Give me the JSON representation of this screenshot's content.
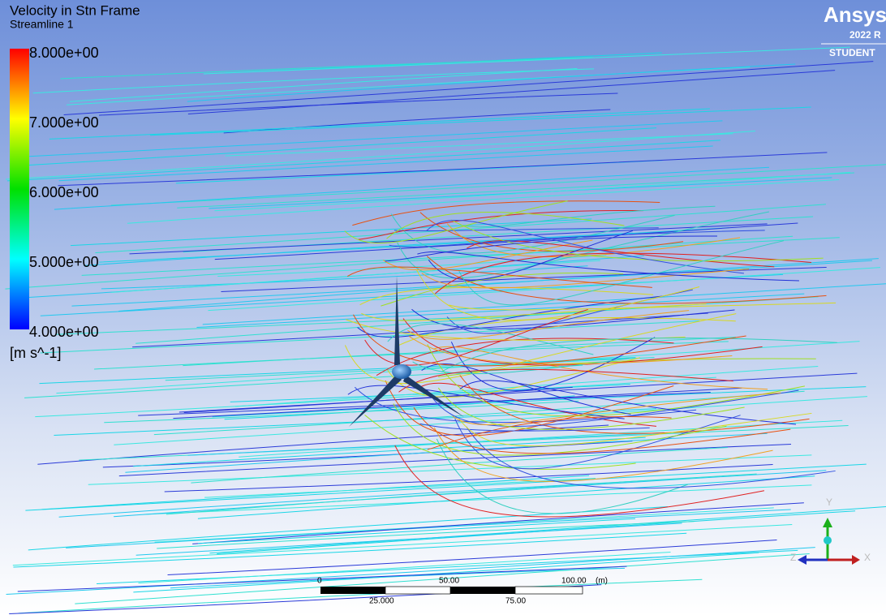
{
  "title": "Velocity in Stn Frame",
  "subtitle": "Streamline 1",
  "legend": {
    "labels": [
      "8.000e+00",
      "7.000e+00",
      "6.000e+00",
      "5.000e+00",
      "4.000e+00"
    ],
    "unit": "[m s^-1]"
  },
  "logo": {
    "brand": "Ansys",
    "version": "2022 R",
    "edition": "STUDENT"
  },
  "scale_bar": {
    "top_labels": [
      "0",
      "50.00",
      "100.00",
      "(m)"
    ],
    "bottom_labels": [
      "25.000",
      "75.00"
    ]
  },
  "triad": {
    "y": "Y",
    "z": "Z",
    "x": "X"
  }
}
